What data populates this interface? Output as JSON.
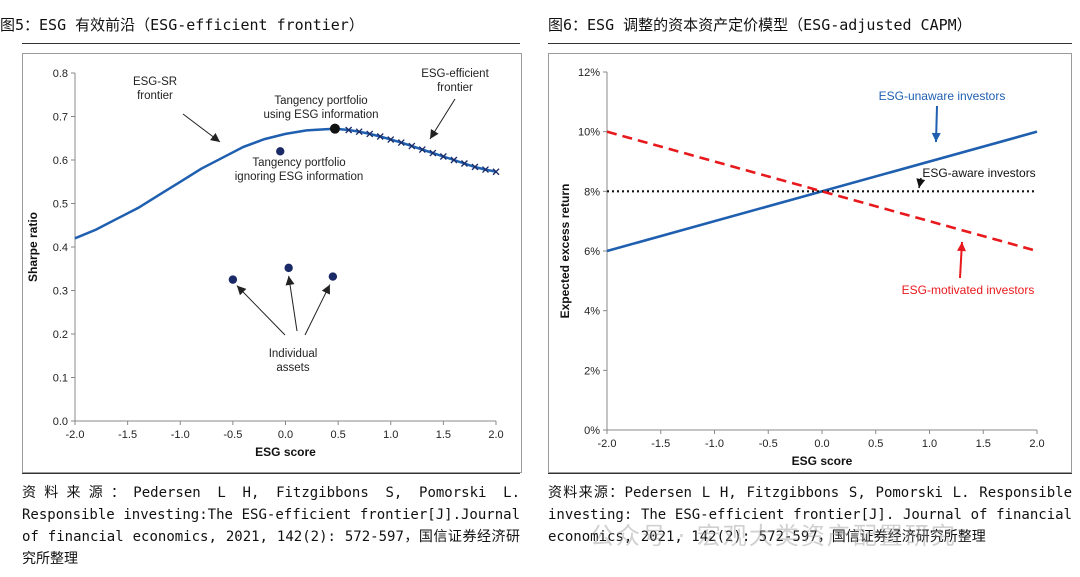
{
  "figures": [
    {
      "title": "图5：ESG 有效前沿（ESG-efficient frontier）",
      "source": "资料来源：Pedersen L H, Fitzgibbons S, Pomorski L. Responsible investing:The ESG-efficient frontier[J].Journal of financial economics, 2021, 142(2): 572-597，国信证券经济研究所整理"
    },
    {
      "title": "图6：ESG 调整的资本资产定价模型（ESG-adjusted CAPM）",
      "source": "资料来源：Pedersen L H, Fitzgibbons S, Pomorski L. Responsible investing: The ESG-efficient frontier[J]. Journal of financial economics, 2021, 142(2): 572-597，国信证券经济研究所整理"
    }
  ],
  "watermark": "公众号 · 宏观大类资产配置研究",
  "chart_data": [
    {
      "type": "line",
      "xlabel": "ESG score",
      "ylabel": "Sharpe ratio",
      "xlim": [
        -2.0,
        2.0
      ],
      "ylim": [
        0.0,
        0.8
      ],
      "xticks": [
        "-2.0",
        "-1.5",
        "-1.0",
        "-0.5",
        "0.0",
        "0.5",
        "1.0",
        "1.5",
        "2.0"
      ],
      "yticks": [
        "0.0",
        "0.1",
        "0.2",
        "0.3",
        "0.4",
        "0.5",
        "0.6",
        "0.7",
        "0.8"
      ],
      "grid": false,
      "series": [
        {
          "name": "ESG-SR frontier",
          "color": "#1f5fb0",
          "x": [
            -2.0,
            -1.8,
            -1.6,
            -1.4,
            -1.2,
            -1.0,
            -0.8,
            -0.6,
            -0.4,
            -0.2,
            0.0,
            0.2,
            0.4,
            0.47
          ],
          "y": [
            0.42,
            0.44,
            0.465,
            0.49,
            0.52,
            0.55,
            0.58,
            0.605,
            0.63,
            0.648,
            0.66,
            0.668,
            0.671,
            0.672
          ]
        },
        {
          "name": "ESG-efficient frontier",
          "color": "#1f5fb0",
          "marker": "x",
          "x": [
            0.47,
            0.6,
            0.7,
            0.8,
            0.9,
            1.0,
            1.1,
            1.2,
            1.3,
            1.4,
            1.5,
            1.6,
            1.7,
            1.8,
            1.9,
            2.0
          ],
          "y": [
            0.672,
            0.669,
            0.665,
            0.66,
            0.654,
            0.647,
            0.64,
            0.632,
            0.624,
            0.616,
            0.608,
            0.6,
            0.592,
            0.584,
            0.578,
            0.573
          ]
        }
      ],
      "points": [
        {
          "name": "Tangency portfolio using ESG information",
          "x": 0.47,
          "y": 0.672,
          "color": "#111111"
        },
        {
          "name": "Tangency portfolio ignoring ESG information",
          "x": -0.05,
          "y": 0.62,
          "color": "#1a2a66"
        },
        {
          "name": "Individual assets",
          "x": -0.5,
          "y": 0.325,
          "color": "#1a2a66"
        },
        {
          "name": "Individual assets",
          "x": 0.03,
          "y": 0.352,
          "color": "#1a2a66"
        },
        {
          "name": "Individual assets",
          "x": 0.45,
          "y": 0.332,
          "color": "#1a2a66"
        }
      ],
      "annotations": [
        {
          "id": "esg-sr",
          "lines": [
            "ESG-SR",
            "frontier"
          ]
        },
        {
          "id": "esg-eff",
          "lines": [
            "ESG-efficient",
            "frontier"
          ]
        },
        {
          "id": "tan-using",
          "lines": [
            "Tangency portfolio",
            "using ESG information"
          ]
        },
        {
          "id": "tan-ignoring",
          "lines": [
            "Tangency portfolio",
            "ignoring ESG information"
          ]
        },
        {
          "id": "indiv",
          "lines": [
            "Individual",
            "assets"
          ]
        }
      ]
    },
    {
      "type": "line",
      "xlabel": "ESG score",
      "ylabel": "Expected excess return",
      "xlim": [
        -2.0,
        2.0
      ],
      "ylim": [
        0,
        12
      ],
      "xticks": [
        "-2.0",
        "-1.5",
        "-1.0",
        "-0.5",
        "0.0",
        "0.5",
        "1.0",
        "1.5",
        "2.0"
      ],
      "yticks": [
        "0%",
        "2%",
        "4%",
        "6%",
        "8%",
        "10%",
        "12%"
      ],
      "grid": false,
      "series": [
        {
          "name": "ESG-unaware investors",
          "color": "#1f5fb0",
          "style": "solid",
          "x": [
            -2.0,
            2.0
          ],
          "y": [
            6.0,
            10.0
          ]
        },
        {
          "name": "ESG-aware investors",
          "color": "#111111",
          "style": "dotted",
          "x": [
            -2.0,
            2.0
          ],
          "y": [
            8.0,
            8.0
          ]
        },
        {
          "name": "ESG-motivated investors",
          "color": "#e8191c",
          "style": "dashed",
          "x": [
            -2.0,
            2.0
          ],
          "y": [
            10.0,
            6.0
          ]
        }
      ]
    }
  ]
}
